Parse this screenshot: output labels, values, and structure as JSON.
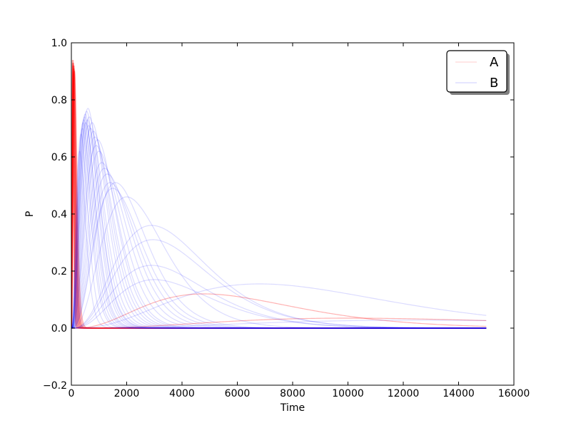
{
  "chart_data": {
    "type": "line",
    "title": "",
    "xlabel": "Time",
    "ylabel": "P",
    "xlim": [
      0,
      16000
    ],
    "ylim": [
      -0.2,
      1.0
    ],
    "xticks": [
      0,
      2000,
      4000,
      6000,
      8000,
      10000,
      12000,
      14000,
      16000
    ],
    "yticks": [
      -0.2,
      0.0,
      0.2,
      0.4,
      0.6,
      0.8,
      1.0
    ],
    "grid": false,
    "legend_position": "top-right",
    "legend": [
      {
        "label": "A",
        "color": "#ff0000"
      },
      {
        "label": "B",
        "color": "#0000ff"
      }
    ],
    "x_end": 15000,
    "series": [
      {
        "name": "A",
        "color": "#ff0000",
        "peaks": [
          {
            "x": 40,
            "y": 0.94
          },
          {
            "x": 55,
            "y": 0.93
          },
          {
            "x": 70,
            "y": 0.92
          },
          {
            "x": 60,
            "y": 0.9
          },
          {
            "x": 80,
            "y": 0.93
          },
          {
            "x": 90,
            "y": 0.91
          },
          {
            "x": 100,
            "y": 0.92
          },
          {
            "x": 65,
            "y": 0.94
          },
          {
            "x": 110,
            "y": 0.9
          },
          {
            "x": 75,
            "y": 0.92
          },
          {
            "x": 85,
            "y": 0.89
          },
          {
            "x": 50,
            "y": 0.93
          },
          {
            "x": 95,
            "y": 0.91
          },
          {
            "x": 120,
            "y": 0.9
          },
          {
            "x": 45,
            "y": 0.92
          },
          {
            "x": 4800,
            "y": 0.12
          },
          {
            "x": 10000,
            "y": 0.035
          }
        ]
      },
      {
        "name": "B",
        "color": "#0000ff",
        "peaks": [
          {
            "x": 300,
            "y": 0.62
          },
          {
            "x": 350,
            "y": 0.68
          },
          {
            "x": 400,
            "y": 0.7
          },
          {
            "x": 420,
            "y": 0.72
          },
          {
            "x": 450,
            "y": 0.73
          },
          {
            "x": 480,
            "y": 0.74
          },
          {
            "x": 500,
            "y": 0.75
          },
          {
            "x": 520,
            "y": 0.72
          },
          {
            "x": 550,
            "y": 0.76
          },
          {
            "x": 580,
            "y": 0.73
          },
          {
            "x": 600,
            "y": 0.77
          },
          {
            "x": 620,
            "y": 0.71
          },
          {
            "x": 650,
            "y": 0.74
          },
          {
            "x": 700,
            "y": 0.7
          },
          {
            "x": 750,
            "y": 0.72
          },
          {
            "x": 800,
            "y": 0.69
          },
          {
            "x": 850,
            "y": 0.67
          },
          {
            "x": 900,
            "y": 0.64
          },
          {
            "x": 950,
            "y": 0.66
          },
          {
            "x": 1000,
            "y": 0.62
          },
          {
            "x": 1100,
            "y": 0.58
          },
          {
            "x": 1200,
            "y": 0.56
          },
          {
            "x": 1300,
            "y": 0.54
          },
          {
            "x": 1400,
            "y": 0.51
          },
          {
            "x": 1500,
            "y": 0.49
          },
          {
            "x": 1600,
            "y": 0.51
          },
          {
            "x": 2000,
            "y": 0.46
          },
          {
            "x": 2900,
            "y": 0.36
          },
          {
            "x": 2950,
            "y": 0.31
          },
          {
            "x": 2900,
            "y": 0.22
          },
          {
            "x": 3000,
            "y": 0.17
          },
          {
            "x": 6800,
            "y": 0.155
          },
          {
            "x": 12500,
            "y": 0.028
          }
        ]
      }
    ]
  }
}
